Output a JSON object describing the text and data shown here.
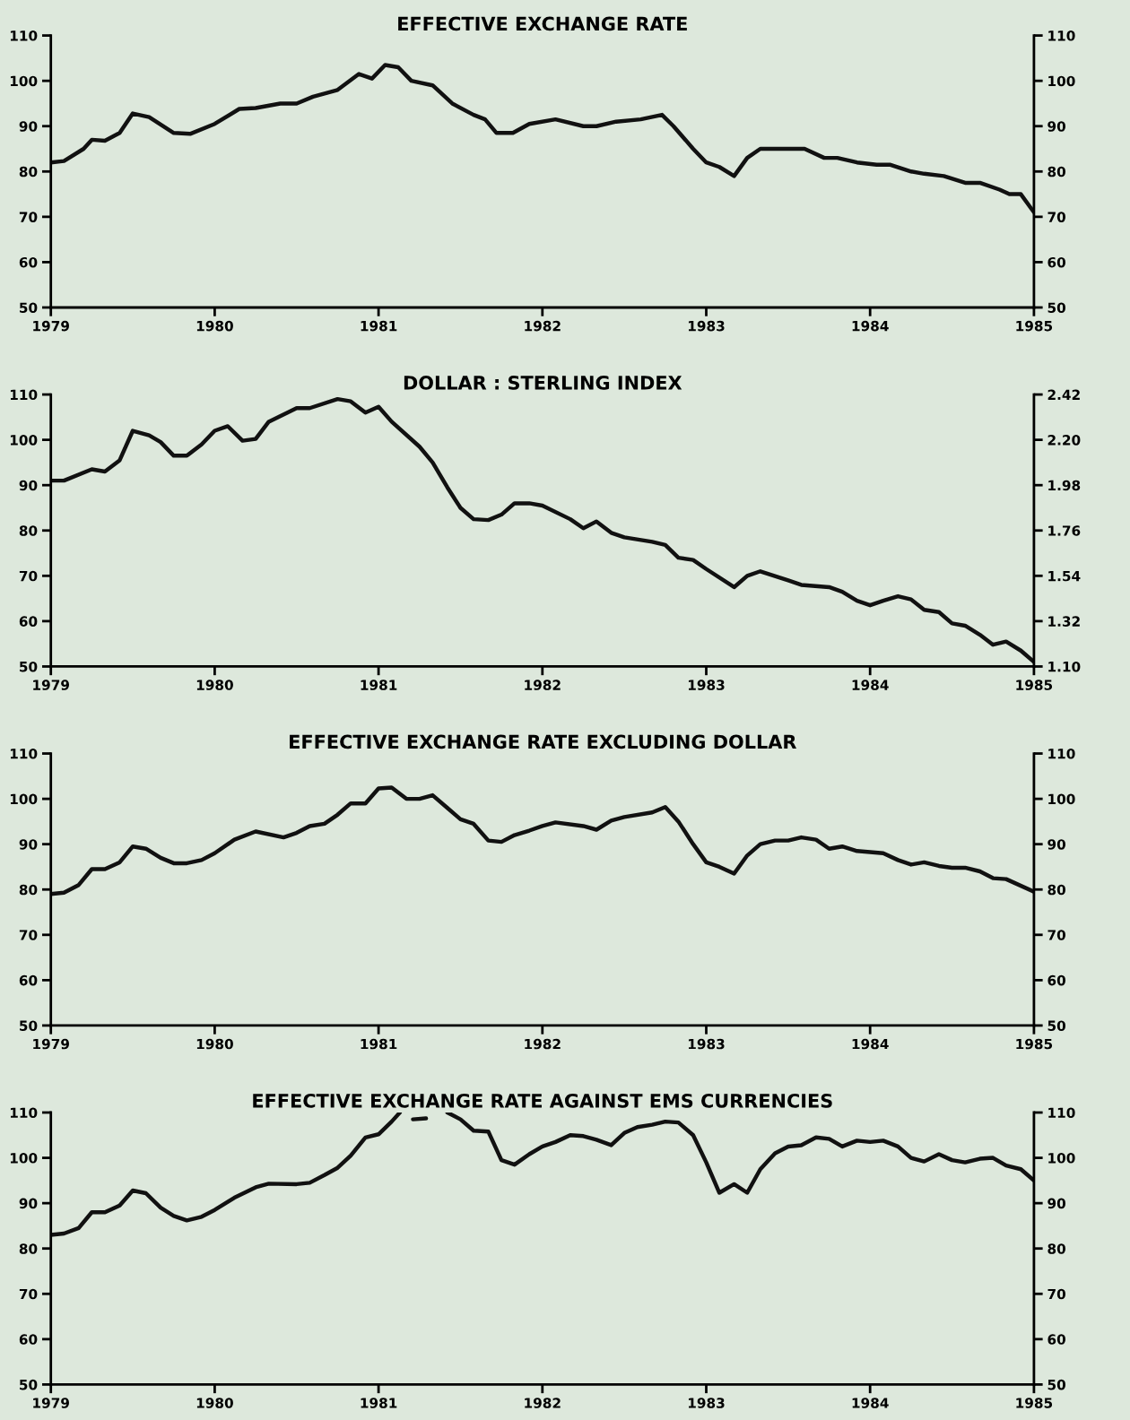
{
  "chart_data": [
    {
      "type": "line",
      "title": "EFFECTIVE EXCHANGE RATE",
      "xlim": [
        1979,
        1985
      ],
      "xticks": [
        1979,
        1980,
        1981,
        1982,
        1983,
        1984,
        1985
      ],
      "ylim": [
        50,
        110
      ],
      "yticks": [
        50,
        60,
        70,
        80,
        90,
        100,
        110
      ],
      "y2lim": [
        50,
        110
      ],
      "y2ticks": [
        50,
        60,
        70,
        80,
        90,
        100,
        110
      ],
      "grid": false,
      "marker": "none",
      "line_style": "solid",
      "series": [
        {
          "color": "#111111",
          "x": [
            1979.0,
            1979.08,
            1979.2,
            1979.25,
            1979.33,
            1979.42,
            1979.5,
            1979.6,
            1979.75,
            1979.85,
            1980.0,
            1980.15,
            1980.25,
            1980.4,
            1980.5,
            1980.6,
            1980.75,
            1980.88,
            1980.96,
            1981.04,
            1981.12,
            1981.2,
            1981.33,
            1981.45,
            1981.58,
            1981.65,
            1981.72,
            1981.82,
            1981.92,
            1982.08,
            1982.25,
            1982.33,
            1982.45,
            1982.6,
            1982.73,
            1982.8,
            1982.92,
            1983.0,
            1983.08,
            1983.17,
            1983.25,
            1983.33,
            1983.45,
            1983.6,
            1983.72,
            1983.8,
            1983.92,
            1984.04,
            1984.12,
            1984.25,
            1984.33,
            1984.45,
            1984.58,
            1984.67,
            1984.79,
            1984.85,
            1984.92,
            1985.0
          ],
          "values": [
            82,
            82.3,
            85,
            87,
            86.8,
            88.5,
            92.8,
            92,
            88.5,
            88.3,
            90.5,
            93.8,
            94,
            95,
            95,
            96.5,
            98,
            101.5,
            100.5,
            103.5,
            103,
            100,
            99,
            95,
            92.5,
            91.5,
            88.5,
            88.5,
            90.5,
            91.5,
            90,
            90,
            91,
            91.5,
            92.5,
            90,
            85,
            82,
            81,
            79,
            83,
            85,
            85,
            85,
            83,
            83,
            82,
            81.5,
            81.5,
            80,
            79.5,
            79,
            77.5,
            77.5,
            76,
            75,
            75,
            71
          ]
        }
      ]
    },
    {
      "type": "line",
      "title": "DOLLAR : STERLING INDEX",
      "xlim": [
        1979,
        1985
      ],
      "xticks": [
        1979,
        1980,
        1981,
        1982,
        1983,
        1984,
        1985
      ],
      "ylim": [
        50,
        110
      ],
      "yticks": [
        50,
        60,
        70,
        80,
        90,
        100,
        110
      ],
      "y2lim": [
        1.1,
        2.42
      ],
      "y2ticks": [
        {
          "value": 1.1,
          "label": "1.10"
        },
        1.32,
        1.54,
        1.76,
        1.98,
        {
          "value": 2.2,
          "label": "2.20"
        },
        2.42
      ],
      "grid": false,
      "marker": "none",
      "line_style": "solid",
      "series": [
        {
          "color": "#111111",
          "x": [
            1979.0,
            1979.08,
            1979.25,
            1979.33,
            1979.42,
            1979.5,
            1979.6,
            1979.67,
            1979.75,
            1979.83,
            1979.92,
            1980.0,
            1980.08,
            1980.17,
            1980.25,
            1980.33,
            1980.5,
            1980.58,
            1980.75,
            1980.83,
            1980.92,
            1981.0,
            1981.08,
            1981.25,
            1981.33,
            1981.42,
            1981.5,
            1981.58,
            1981.67,
            1981.75,
            1981.83,
            1981.92,
            1982.0,
            1982.17,
            1982.25,
            1982.33,
            1982.42,
            1982.5,
            1982.67,
            1982.75,
            1982.83,
            1982.92,
            1983.0,
            1983.17,
            1983.25,
            1983.33,
            1983.5,
            1983.58,
            1983.75,
            1983.83,
            1983.92,
            1984.0,
            1984.08,
            1984.17,
            1984.25,
            1984.33,
            1984.42,
            1984.5,
            1984.58,
            1984.67,
            1984.75,
            1984.83,
            1984.92,
            1985.0
          ],
          "values": [
            91,
            91,
            93.5,
            93,
            95.5,
            102,
            101,
            99.5,
            96.5,
            96.5,
            99,
            102,
            103,
            99.8,
            100.2,
            104,
            107,
            107,
            109,
            108.5,
            106,
            107.3,
            104,
            98.5,
            95,
            89.5,
            85,
            82.5,
            82.3,
            83.5,
            86,
            86,
            85.5,
            82.5,
            80.5,
            82,
            79.5,
            78.5,
            77.5,
            76.8,
            74,
            73.5,
            71.5,
            67.5,
            70,
            71,
            69,
            68,
            67.5,
            66.5,
            64.5,
            63.5,
            64.5,
            65.5,
            64.8,
            62.5,
            62,
            59.5,
            59,
            57,
            54.8,
            55.5,
            53.5,
            51
          ]
        }
      ]
    },
    {
      "type": "line",
      "title": "EFFECTIVE EXCHANGE RATE EXCLUDING DOLLAR",
      "xlim": [
        1979,
        1985
      ],
      "xticks": [
        1979,
        1980,
        1981,
        1982,
        1983,
        1984,
        1985
      ],
      "ylim": [
        50,
        110
      ],
      "yticks": [
        50,
        60,
        70,
        80,
        90,
        100,
        110
      ],
      "y2lim": [
        50,
        110
      ],
      "y2ticks": [
        50,
        60,
        70,
        80,
        90,
        100,
        110
      ],
      "grid": false,
      "marker": "none",
      "line_style": "solid",
      "series": [
        {
          "color": "#111111",
          "x": [
            1979.0,
            1979.08,
            1979.17,
            1979.25,
            1979.33,
            1979.42,
            1979.5,
            1979.58,
            1979.67,
            1979.75,
            1979.83,
            1979.92,
            1980.0,
            1980.12,
            1980.25,
            1980.42,
            1980.5,
            1980.58,
            1980.67,
            1980.75,
            1980.83,
            1980.92,
            1981.0,
            1981.08,
            1981.17,
            1981.25,
            1981.33,
            1981.42,
            1981.5,
            1981.58,
            1981.67,
            1981.75,
            1981.83,
            1981.92,
            1982.0,
            1982.08,
            1982.25,
            1982.33,
            1982.42,
            1982.5,
            1982.67,
            1982.75,
            1982.83,
            1982.92,
            1983.0,
            1983.08,
            1983.17,
            1983.25,
            1983.33,
            1983.42,
            1983.5,
            1983.58,
            1983.67,
            1983.75,
            1983.83,
            1983.92,
            1984.08,
            1984.17,
            1984.25,
            1984.33,
            1984.42,
            1984.5,
            1984.58,
            1984.67,
            1984.75,
            1984.83,
            1985.0
          ],
          "values": [
            79,
            79.3,
            81,
            84.5,
            84.5,
            86,
            89.5,
            89,
            87,
            85.8,
            85.8,
            86.5,
            88,
            91,
            92.8,
            91.5,
            92.5,
            94,
            94.5,
            96.5,
            99,
            99,
            102.3,
            102.5,
            100,
            100,
            100.8,
            98,
            95.5,
            94.5,
            90.8,
            90.5,
            92,
            93,
            94,
            94.8,
            94,
            93.2,
            95.2,
            96,
            97,
            98.2,
            95,
            90,
            86,
            85,
            83.5,
            87.5,
            90,
            90.8,
            90.8,
            91.5,
            91,
            89,
            89.5,
            88.5,
            88,
            86.5,
            85.5,
            86,
            85.2,
            84.8,
            84.8,
            84,
            82.5,
            82.3,
            79.5
          ]
        }
      ]
    },
    {
      "type": "line",
      "title": "EFFECTIVE EXCHANGE RATE AGAINST EMS CURRENCIES",
      "xlim": [
        1979,
        1985
      ],
      "xticks": [
        1979,
        1980,
        1981,
        1982,
        1983,
        1984,
        1985
      ],
      "ylim": [
        50,
        110
      ],
      "yticks": [
        50,
        60,
        70,
        80,
        90,
        100,
        110
      ],
      "y2lim": [
        50,
        110
      ],
      "y2ticks": [
        50,
        60,
        70,
        80,
        90,
        100,
        110
      ],
      "grid": false,
      "marker": "none",
      "line_style": "solid",
      "series": [
        {
          "color": "#111111",
          "x": [
            1979.0,
            1979.08,
            1979.17,
            1979.25,
            1979.33,
            1979.42,
            1979.5,
            1979.58,
            1979.67,
            1979.75,
            1979.83,
            1979.92,
            1980.0,
            1980.12,
            1980.25,
            1980.33,
            1980.5,
            1980.58,
            1980.67,
            1980.75,
            1980.83,
            1980.92,
            1981.0,
            1981.08,
            1981.13,
            1981.17,
            1981.21,
            1981.29,
            1981.33,
            1981.42,
            1981.5,
            1981.58,
            1981.67,
            1981.75,
            1981.83,
            1981.92,
            1982.0,
            1982.08,
            1982.17,
            1982.25,
            1982.33,
            1982.42,
            1982.5,
            1982.58,
            1982.67,
            1982.75,
            1982.83,
            1982.92,
            1983.0,
            1983.08,
            1983.17,
            1983.25,
            1983.33,
            1983.42,
            1983.5,
            1983.58,
            1983.67,
            1983.75,
            1983.83,
            1983.92,
            1984.0,
            1984.08,
            1984.17,
            1984.25,
            1984.33,
            1984.42,
            1984.5,
            1984.58,
            1984.67,
            1984.75,
            1984.83,
            1984.92,
            1985.0
          ],
          "values": [
            83,
            83.3,
            84.5,
            88,
            88,
            89.5,
            92.8,
            92.2,
            89,
            87.2,
            86.2,
            87,
            88.5,
            91.2,
            93.5,
            94.3,
            94.2,
            94.5,
            96.2,
            97.8,
            100.5,
            104.5,
            105.2,
            108,
            110,
            null,
            108.5,
            108.7,
            null,
            110,
            108.5,
            106,
            105.8,
            99.5,
            98.5,
            100.8,
            102.5,
            103.5,
            105,
            104.8,
            104,
            102.8,
            105.5,
            106.8,
            107.3,
            108,
            107.8,
            105,
            99,
            92.3,
            94.2,
            92.3,
            97.5,
            101,
            102.5,
            102.8,
            104.5,
            104.2,
            102.5,
            103.8,
            103.5,
            103.8,
            102.5,
            100,
            99.2,
            100.8,
            99.5,
            99,
            99.8,
            100,
            98.3,
            97.5,
            95
          ]
        }
      ]
    }
  ]
}
